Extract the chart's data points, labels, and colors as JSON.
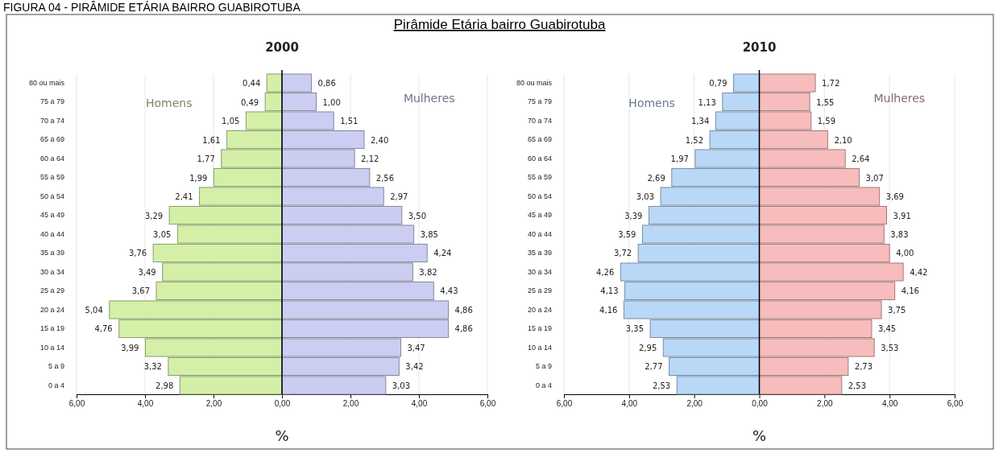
{
  "chart_data": [
    {
      "type": "bar",
      "orientation": "horizontal",
      "title": "2000",
      "xlabel": "%",
      "annotations": [
        "FIGURA 04 - PIRÂMIDE ETÁRIA BAIRRO GUABIROTUBA",
        "Pirâmide Etária bairro Guabirotuba"
      ],
      "categories": [
        "80 ou mais",
        "75 a 79",
        "70 a 74",
        "65 a 69",
        "60 a 64",
        "55 a 59",
        "50 a 54",
        "45 a 49",
        "40 a 44",
        "35 a 39",
        "30 a 34",
        "25 a 29",
        "20 a 24",
        "15 a 19",
        "10 a 14",
        "5 a 9",
        "0 a 4"
      ],
      "xlim": [
        -6,
        6
      ],
      "xticks": [
        {
          "value": -6,
          "label": "6,00"
        },
        {
          "value": -4,
          "label": "4,00"
        },
        {
          "value": -2,
          "label": "2,00"
        },
        {
          "value": 0,
          "label": "0,00"
        },
        {
          "value": 2,
          "label": "2,00"
        },
        {
          "value": 4,
          "label": "4,00"
        },
        {
          "value": 6,
          "label": "6,00"
        }
      ],
      "grid": "x",
      "series": [
        {
          "name": "Homens",
          "color": "#d4f0a8",
          "base": [
            -0.44,
            -0.49,
            -1.05,
            -1.61,
            -1.77,
            -1.99,
            -2.41,
            -3.29,
            -3.05,
            -3.76,
            -3.49,
            -3.67,
            -5.04,
            -4.76,
            -3.99,
            -3.32,
            -2.98
          ],
          "values": [
            0.44,
            0.49,
            1.05,
            1.61,
            1.77,
            1.99,
            2.41,
            3.29,
            3.05,
            3.76,
            3.49,
            3.67,
            5.04,
            4.76,
            3.99,
            3.32,
            2.98
          ],
          "value_labels": [
            "0,44",
            "0,49",
            "1,05",
            "1,61",
            "1,77",
            "1,99",
            "2,41",
            "3,29",
            "3,05",
            "3,76",
            "3,49",
            "3,67",
            "5,04",
            "4,76",
            "3,99",
            "3,32",
            "2,98"
          ]
        },
        {
          "name": "Mulheres",
          "color": "#cccdf2",
          "values": [
            0.86,
            1.0,
            1.51,
            2.4,
            2.12,
            2.56,
            2.97,
            3.5,
            3.85,
            4.24,
            3.82,
            4.43,
            4.86,
            4.86,
            3.47,
            3.42,
            3.03
          ],
          "value_labels": [
            "0,86",
            "1,00",
            "1,51",
            "2,40",
            "2,12",
            "2,56",
            "2,97",
            "3,50",
            "3,85",
            "4,24",
            "3,82",
            "4,43",
            "4,86",
            "4,86",
            "3,47",
            "3,42",
            "3,03"
          ]
        }
      ]
    },
    {
      "type": "bar",
      "orientation": "horizontal",
      "title": "2010",
      "xlabel": "%",
      "categories": [
        "80 ou mais",
        "75 a 79",
        "70 a 74",
        "65 a 69",
        "60 a 64",
        "55 a 59",
        "50 a 54",
        "45 a 49",
        "40 a 44",
        "35 a 39",
        "30 a 34",
        "25 a 29",
        "20 a 24",
        "15 a 19",
        "10 a 14",
        "5 a 9",
        "0 a 4"
      ],
      "xlim": [
        -6,
        6
      ],
      "xticks": [
        {
          "value": -6,
          "label": "6,00"
        },
        {
          "value": -4,
          "label": "4,00"
        },
        {
          "value": -2,
          "label": "2,00"
        },
        {
          "value": 0,
          "label": "0,00"
        },
        {
          "value": 2,
          "label": "2,00"
        },
        {
          "value": 4,
          "label": "4,00"
        },
        {
          "value": 6,
          "label": "6,00"
        }
      ],
      "grid": "x",
      "series": [
        {
          "name": "Homens",
          "color": "#b9d7f7",
          "base": [
            -0.79,
            -1.13,
            -1.34,
            -1.52,
            -1.97,
            -2.69,
            -3.03,
            -3.39,
            -3.59,
            -3.72,
            -4.26,
            -4.13,
            -4.16,
            -3.35,
            -2.95,
            -2.77,
            -2.53
          ],
          "values": [
            0.79,
            1.13,
            1.34,
            1.52,
            1.97,
            2.69,
            3.03,
            3.39,
            3.59,
            3.72,
            4.26,
            4.13,
            4.16,
            3.35,
            2.95,
            2.77,
            2.53
          ],
          "value_labels": [
            "0,79",
            "1,13",
            "1,34",
            "1,52",
            "1,97",
            "2,69",
            "3,03",
            "3,39",
            "3,59",
            "3,72",
            "4,26",
            "4,13",
            "4,16",
            "3,35",
            "2,95",
            "2,77",
            "2,53"
          ]
        },
        {
          "name": "Mulheres",
          "color": "#f7bcbc",
          "values": [
            1.72,
            1.55,
            1.59,
            2.1,
            2.64,
            3.07,
            3.69,
            3.91,
            3.83,
            4.0,
            4.42,
            4.16,
            3.75,
            3.45,
            3.53,
            2.73,
            2.53
          ],
          "value_labels": [
            "1,72",
            "1,55",
            "1,59",
            "2,10",
            "2,64",
            "3,07",
            "3,69",
            "3,91",
            "3,83",
            "4,00",
            "4,42",
            "4,16",
            "3,75",
            "3,45",
            "3,53",
            "2,73",
            "2,53"
          ]
        }
      ]
    }
  ]
}
